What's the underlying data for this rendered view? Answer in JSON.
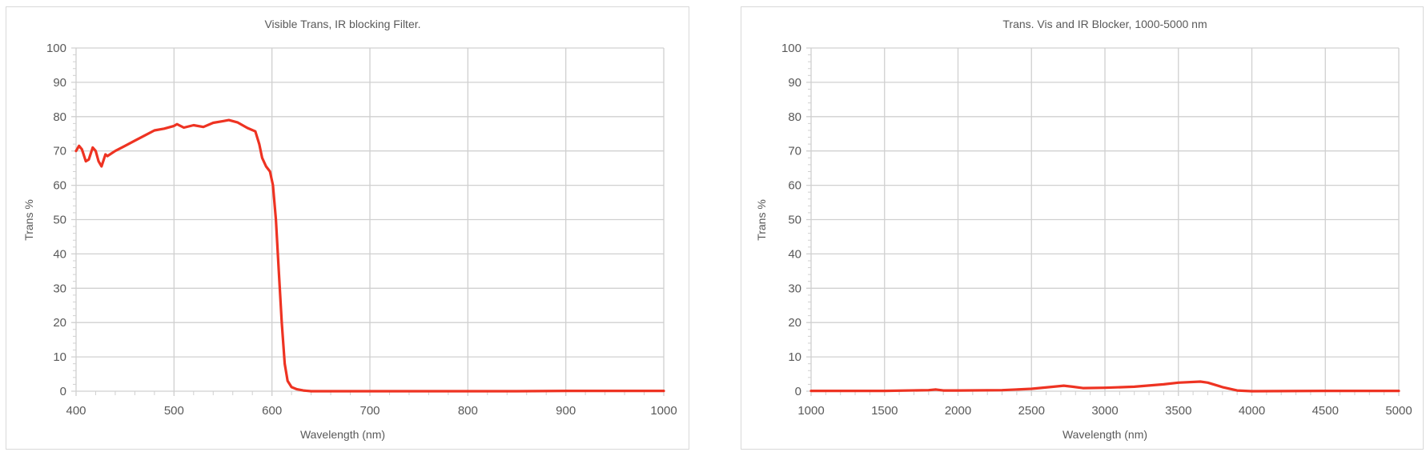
{
  "colors": {
    "series": "#ee3322",
    "grid": "#d0d0d0",
    "axis_text": "#595959",
    "border": "#d9d9d9"
  },
  "chart_data": [
    {
      "type": "line",
      "title": "Visible Trans, IR blocking Filter.",
      "xlabel": "Wavelength (nm)",
      "ylabel": "Trans %",
      "xlim": [
        400,
        1000
      ],
      "ylim": [
        0,
        100
      ],
      "xticks": [
        400,
        500,
        600,
        700,
        800,
        900,
        1000
      ],
      "yticks": [
        0,
        10,
        20,
        30,
        40,
        50,
        60,
        70,
        80,
        90,
        100
      ],
      "x_minor_step": 20,
      "y_minor_step": 2,
      "grid": true,
      "legend": "none",
      "series": [
        {
          "color": "#ee3322",
          "x": [
            400,
            403,
            406,
            410,
            413,
            417,
            420,
            423,
            426,
            430,
            432,
            440,
            450,
            460,
            470,
            480,
            490,
            500,
            503,
            510,
            520,
            530,
            540,
            550,
            556,
            565,
            575,
            583,
            587,
            590,
            594,
            598,
            601,
            604,
            607,
            610,
            613,
            616,
            620,
            625,
            632,
            640,
            700,
            800,
            850,
            900,
            1000
          ],
          "y": [
            70,
            71.5,
            70.5,
            67,
            67.5,
            71,
            70,
            67,
            65.5,
            69,
            68.5,
            70,
            71.5,
            73,
            74.5,
            76,
            76.5,
            77.3,
            77.8,
            76.8,
            77.5,
            77,
            78.2,
            78.7,
            79,
            78.3,
            76.7,
            75.7,
            72,
            68,
            65.5,
            64,
            60,
            50,
            35,
            20,
            8,
            3,
            1.2,
            0.6,
            0.2,
            0,
            0,
            0,
            0,
            0.1,
            0.1
          ]
        }
      ]
    },
    {
      "type": "line",
      "title": "Trans. Vis and IR Blocker, 1000-5000 nm",
      "xlabel": "Wavelength (nm)",
      "ylabel": "Trans %",
      "xlim": [
        1000,
        5000
      ],
      "ylim": [
        0,
        100
      ],
      "xticks": [
        1000,
        1500,
        2000,
        2500,
        3000,
        3500,
        4000,
        4500,
        5000
      ],
      "yticks": [
        0,
        10,
        20,
        30,
        40,
        50,
        60,
        70,
        80,
        90,
        100
      ],
      "x_minor_step": 100,
      "y_minor_step": 2,
      "grid": true,
      "legend": "none",
      "series": [
        {
          "color": "#ee3322",
          "x": [
            1000,
            1500,
            1800,
            1850,
            1900,
            2000,
            2300,
            2500,
            2650,
            2720,
            2780,
            2850,
            3000,
            3200,
            3400,
            3500,
            3650,
            3700,
            3800,
            3900,
            4000,
            4500,
            5000
          ],
          "y": [
            0.1,
            0.1,
            0.3,
            0.5,
            0.2,
            0.2,
            0.3,
            0.7,
            1.3,
            1.6,
            1.3,
            0.9,
            1.0,
            1.3,
            2.0,
            2.5,
            2.8,
            2.5,
            1.2,
            0.2,
            0,
            0.1,
            0.1
          ]
        }
      ]
    }
  ]
}
